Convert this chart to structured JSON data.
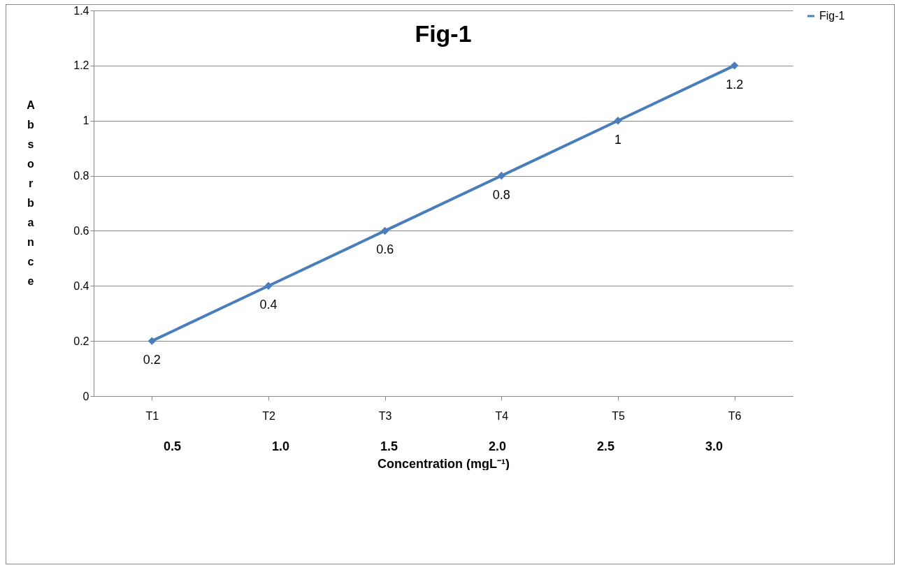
{
  "chart_data": {
    "type": "line",
    "title": "Fig-1",
    "xlabel": "Concentration (mgL⁻¹)",
    "ylabel": "Absorbance",
    "annotations": [
      "0.5",
      "1.0",
      "1.5",
      "2.0",
      "2.5",
      "3.0"
    ],
    "categories": [
      "T1",
      "T2",
      "T3",
      "T4",
      "T5",
      "T6"
    ],
    "series": [
      {
        "name": "Fig-1",
        "color": "#4a7ebb",
        "values": [
          0.2,
          0.4,
          0.6,
          0.8,
          1,
          1.2
        ]
      }
    ],
    "ylim": [
      0,
      1.4
    ],
    "yticks": [
      0,
      0.2,
      0.4,
      0.6,
      0.8,
      1,
      1.2,
      1.4
    ],
    "grid": "y",
    "legend": "right",
    "marker": "diamond",
    "line_style": "solid",
    "data_labels": true
  }
}
